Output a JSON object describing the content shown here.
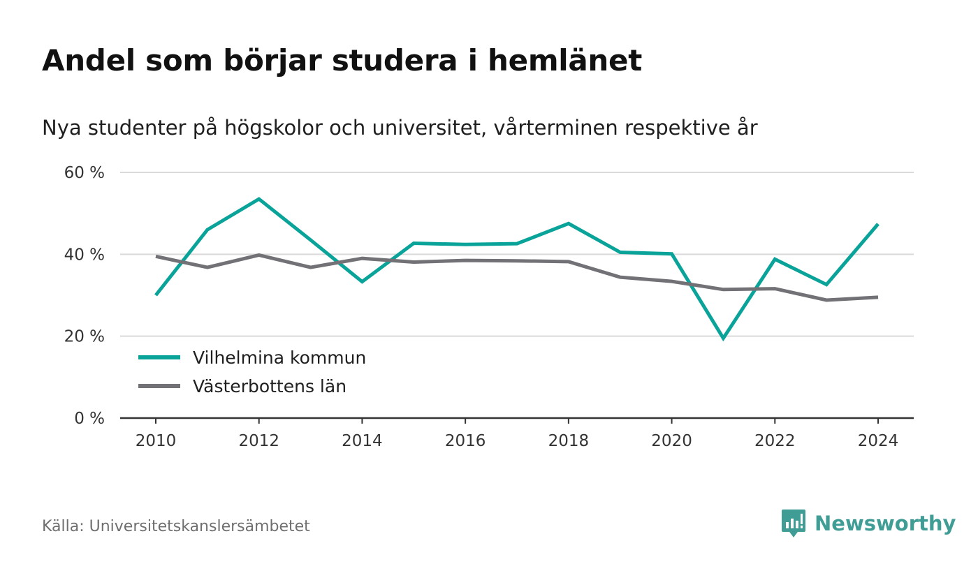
{
  "header": {
    "title": "Andel som börjar studera i hemlänet",
    "subtitle": "Nya studenter på högskolor och universitet, vårterminen respektive år"
  },
  "footer": {
    "source": "Källa: Universitetskanslersämbetet",
    "brand": "Newsworthy"
  },
  "colors": {
    "vilhelmina": "#0aa39a",
    "vasterbotten": "#727176",
    "gridline": "#dadada",
    "axis": "#333333",
    "brand": "#3f9d95"
  },
  "chart_data": {
    "type": "line",
    "title": "Andel som börjar studera i hemlänet",
    "subtitle": "Nya studenter på högskolor och universitet, vårterminen respektive år",
    "x": [
      2010,
      2011,
      2012,
      2013,
      2014,
      2015,
      2016,
      2017,
      2018,
      2019,
      2020,
      2021,
      2022,
      2023,
      2024
    ],
    "x_ticks": [
      "2010",
      "2012",
      "2014",
      "2016",
      "2018",
      "2020",
      "2022",
      "2024"
    ],
    "y_ticks": [
      "0 %",
      "20 %",
      "40 %",
      "60 %"
    ],
    "ylim": [
      0,
      60
    ],
    "grid": true,
    "legend_position": "bottom-left",
    "series": [
      {
        "name": "Vilhelmina kommun",
        "color": "#0aa39a",
        "values": [
          30,
          46,
          53.5,
          43.5,
          33.3,
          42.7,
          42.4,
          42.6,
          47.5,
          40.5,
          40.1,
          19.5,
          38.8,
          32.6,
          47.4
        ]
      },
      {
        "name": "Västerbottens län",
        "color": "#727176",
        "values": [
          39.5,
          36.8,
          39.8,
          36.8,
          39.0,
          38.1,
          38.5,
          38.4,
          38.2,
          34.4,
          33.4,
          31.4,
          31.6,
          28.8,
          29.5
        ]
      }
    ]
  }
}
